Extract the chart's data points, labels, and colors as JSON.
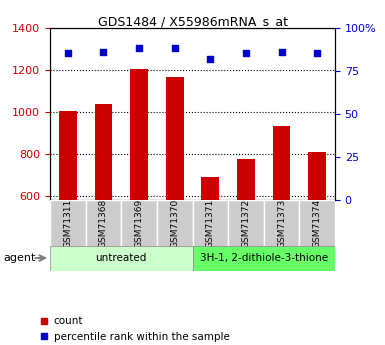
{
  "title": "GDS1484 / X55986mRNA_s_at",
  "samples": [
    "GSM71311",
    "GSM71368",
    "GSM71369",
    "GSM71370",
    "GSM71371",
    "GSM71372",
    "GSM71373",
    "GSM71374"
  ],
  "counts": [
    1005,
    1035,
    1205,
    1165,
    690,
    775,
    930,
    810
  ],
  "percentile_ranks": [
    85,
    86,
    88,
    88,
    82,
    85,
    86,
    85
  ],
  "ylim_left": [
    580,
    1400
  ],
  "ylim_right": [
    0,
    100
  ],
  "yticks_left": [
    600,
    800,
    1000,
    1200,
    1400
  ],
  "yticks_right": [
    0,
    25,
    50,
    75,
    100
  ],
  "right_tick_labels": [
    "0",
    "25",
    "50",
    "75",
    "100%"
  ],
  "bar_color": "#cc0000",
  "dot_color": "#0000cc",
  "bar_bottom": 580,
  "group1_label": "untreated",
  "group1_color": "#ccffcc",
  "group2_label": "3H-1, 2-dithiole-3-thione",
  "group2_color": "#66ff66",
  "agent_label": "agent",
  "legend_count_label": "count",
  "legend_pct_label": "percentile rank within the sample",
  "tick_label_color_left": "#cc0000",
  "tick_label_color_right": "#0000cc",
  "plot_bg_color": "#ffffff"
}
